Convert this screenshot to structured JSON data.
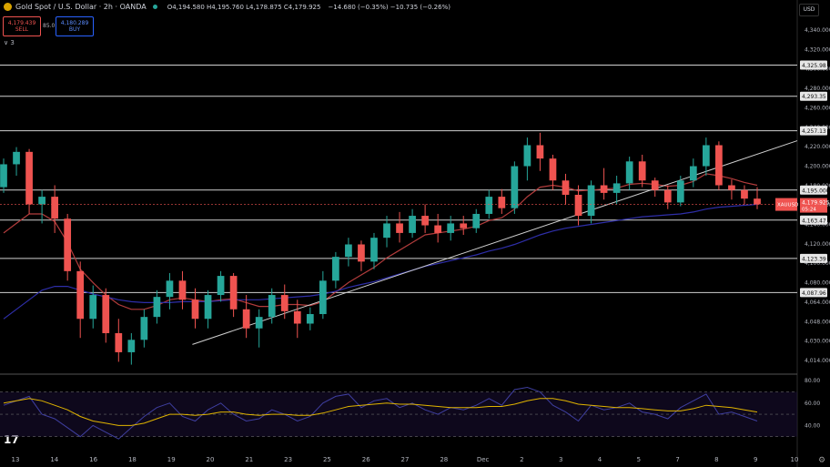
{
  "header": {
    "symbol": "Gold Spot / U.S. Dollar · 2h · OANDA",
    "ohlc": "O4,194.580 H4,195.760 L4,178.875 C4,179.925",
    "change": "−14.680 (−0.35%)  −10.735 (−0.26%)",
    "sell_price": "4,179.439",
    "sell_label": "SELL",
    "spread": "85.0",
    "buy_price": "4,180.289",
    "buy_label": "BUY",
    "collapse_label": "∨ 3",
    "currency": "USD",
    "logo": "17"
  },
  "colors": {
    "up": "#26a69a",
    "down": "#ef5350",
    "ema_short": "#b23c3c",
    "ema_long": "#2e2ea8",
    "rsi": "#3f3fa0",
    "rsi_ma": "#e0b400",
    "hline": "#d0d0d0",
    "price_tag": "#ef5350",
    "trend": "#d0d0d0"
  },
  "chart_data": {
    "type": "candlestick",
    "symbol": "XAUUSD",
    "x_ticks": [
      "13",
      "14",
      "16",
      "18",
      "19",
      "20",
      "21",
      "23",
      "25",
      "26",
      "27",
      "28",
      "Dec",
      "2",
      "3",
      "4",
      "5",
      "7",
      "8",
      "9",
      "10"
    ],
    "y_ticks": [
      "4,340.000",
      "4,320.000",
      "4,300.000",
      "4,280.000",
      "4,260.000",
      "4,240.000",
      "4,220.000",
      "4,200.000",
      "4,180.000",
      "4,160.000",
      "4,140.000",
      "4,120.000",
      "4,100.000",
      "4,080.000",
      "4,064.000",
      "4,048.000",
      "4,030.000",
      "4,014.000"
    ],
    "ylim": [
      4003,
      4356
    ],
    "horizontal_levels": [
      {
        "value": 4325.9,
        "label": "4,325.98"
      },
      {
        "value": 4293.3,
        "label": "4,293.35"
      },
      {
        "value": 4257.1,
        "label": "4,257.13"
      },
      {
        "value": 4195.0,
        "label": "4,195.000"
      },
      {
        "value": 4163.5,
        "label": "4,163.47"
      },
      {
        "value": 4123.3,
        "label": "4,123.39"
      },
      {
        "value": 4087.5,
        "label": "4,087.96"
      }
    ],
    "current_price": {
      "value": 4179.9,
      "label": "4,179.925",
      "ticker": "XAUUSD",
      "countdown": "05:24"
    },
    "trendline": {
      "start": {
        "x": "18",
        "y": 4012
      },
      "end": {
        "x": "9",
        "y": 4232
      }
    },
    "candles_ohlc": [
      [
        4198,
        4228,
        4192,
        4222
      ],
      [
        4222,
        4240,
        4210,
        4235
      ],
      [
        4235,
        4238,
        4170,
        4180
      ],
      [
        4180,
        4195,
        4160,
        4188
      ],
      [
        4188,
        4200,
        4150,
        4165
      ],
      [
        4165,
        4170,
        4100,
        4110
      ],
      [
        4110,
        4120,
        4040,
        4060
      ],
      [
        4060,
        4095,
        4050,
        4085
      ],
      [
        4085,
        4092,
        4035,
        4045
      ],
      [
        4045,
        4060,
        4015,
        4025
      ],
      [
        4025,
        4045,
        4012,
        4038
      ],
      [
        4038,
        4070,
        4030,
        4062
      ],
      [
        4062,
        4090,
        4055,
        4083
      ],
      [
        4083,
        4108,
        4070,
        4100
      ],
      [
        4100,
        4110,
        4070,
        4080
      ],
      [
        4080,
        4092,
        4050,
        4060
      ],
      [
        4060,
        4090,
        4050,
        4085
      ],
      [
        4085,
        4110,
        4078,
        4105
      ],
      [
        4105,
        4108,
        4062,
        4070
      ],
      [
        4070,
        4085,
        4040,
        4050
      ],
      [
        4050,
        4070,
        4030,
        4062
      ],
      [
        4062,
        4092,
        4055,
        4085
      ],
      [
        4085,
        4096,
        4060,
        4068
      ],
      [
        4068,
        4080,
        4040,
        4055
      ],
      [
        4055,
        4072,
        4048,
        4065
      ],
      [
        4065,
        4110,
        4060,
        4100
      ],
      [
        4100,
        4130,
        4092,
        4125
      ],
      [
        4125,
        4145,
        4115,
        4138
      ],
      [
        4138,
        4142,
        4110,
        4120
      ],
      [
        4120,
        4150,
        4112,
        4145
      ],
      [
        4145,
        4168,
        4135,
        4160
      ],
      [
        4160,
        4172,
        4140,
        4150
      ],
      [
        4150,
        4175,
        4145,
        4168
      ],
      [
        4168,
        4180,
        4150,
        4158
      ],
      [
        4158,
        4170,
        4140,
        4150
      ],
      [
        4150,
        4168,
        4142,
        4160
      ],
      [
        4160,
        4168,
        4148,
        4155
      ],
      [
        4155,
        4175,
        4150,
        4170
      ],
      [
        4170,
        4195,
        4165,
        4188
      ],
      [
        4188,
        4196,
        4170,
        4176
      ],
      [
        4176,
        4225,
        4170,
        4220
      ],
      [
        4220,
        4250,
        4205,
        4242
      ],
      [
        4242,
        4255,
        4215,
        4228
      ],
      [
        4228,
        4232,
        4195,
        4205
      ],
      [
        4205,
        4212,
        4180,
        4190
      ],
      [
        4190,
        4200,
        4158,
        4168
      ],
      [
        4168,
        4205,
        4160,
        4200
      ],
      [
        4200,
        4218,
        4185,
        4192
      ],
      [
        4192,
        4210,
        4180,
        4202
      ],
      [
        4202,
        4230,
        4195,
        4225
      ],
      [
        4225,
        4232,
        4198,
        4205
      ],
      [
        4205,
        4208,
        4188,
        4195
      ],
      [
        4195,
        4200,
        4175,
        4182
      ],
      [
        4182,
        4210,
        4178,
        4205
      ],
      [
        4205,
        4228,
        4198,
        4220
      ],
      [
        4220,
        4250,
        4210,
        4242
      ],
      [
        4242,
        4246,
        4195,
        4200
      ],
      [
        4200,
        4206,
        4185,
        4195
      ],
      [
        4195,
        4200,
        4180,
        4186
      ],
      [
        4186,
        4198,
        4175,
        4180
      ]
    ],
    "ema_short_values": [
      4150,
      4160,
      4170,
      4170,
      4162,
      4140,
      4112,
      4098,
      4085,
      4075,
      4070,
      4070,
      4074,
      4080,
      4082,
      4080,
      4078,
      4080,
      4081,
      4077,
      4073,
      4073,
      4075,
      4075,
      4074,
      4078,
      4088,
      4098,
      4106,
      4114,
      4124,
      4132,
      4140,
      4148,
      4150,
      4152,
      4154,
      4157,
      4163,
      4166,
      4175,
      4188,
      4198,
      4200,
      4198,
      4194,
      4195,
      4196,
      4197,
      4201,
      4202,
      4201,
      4199,
      4200,
      4204,
      4212,
      4210,
      4207,
      4203,
      4200
    ],
    "ema_long_values": [
      4060,
      4070,
      4080,
      4090,
      4094,
      4094,
      4090,
      4086,
      4083,
      4080,
      4078,
      4077,
      4077,
      4077,
      4078,
      4078,
      4078,
      4079,
      4080,
      4080,
      4080,
      4081,
      4082,
      4083,
      4084,
      4086,
      4089,
      4093,
      4096,
      4099,
      4103,
      4107,
      4111,
      4115,
      4118,
      4121,
      4124,
      4127,
      4131,
      4134,
      4138,
      4143,
      4148,
      4152,
      4155,
      4157,
      4159,
      4161,
      4163,
      4165,
      4167,
      4168,
      4169,
      4170,
      4172,
      4175,
      4177,
      4178,
      4179,
      4180
    ],
    "rsi": {
      "ylim": [
        20,
        85
      ],
      "y_ticks": [
        "80.00",
        "60.00",
        "40.00"
      ],
      "levels": [
        70,
        50,
        30
      ],
      "values": [
        58,
        62,
        66,
        50,
        46,
        38,
        30,
        40,
        34,
        28,
        38,
        48,
        56,
        60,
        48,
        44,
        54,
        60,
        50,
        44,
        46,
        54,
        50,
        44,
        48,
        60,
        66,
        68,
        56,
        62,
        64,
        56,
        60,
        54,
        50,
        56,
        54,
        58,
        64,
        58,
        72,
        74,
        70,
        58,
        52,
        44,
        58,
        54,
        56,
        60,
        52,
        50,
        46,
        56,
        62,
        68,
        50,
        52,
        48,
        44
      ],
      "ma_values": [
        60,
        62,
        64,
        62,
        58,
        54,
        48,
        44,
        42,
        40,
        40,
        42,
        46,
        50,
        50,
        49,
        50,
        52,
        52,
        50,
        49,
        50,
        50,
        49,
        49,
        51,
        54,
        57,
        58,
        59,
        60,
        59,
        59,
        58,
        57,
        56,
        56,
        56,
        57,
        57,
        59,
        62,
        64,
        64,
        62,
        59,
        58,
        57,
        56,
        56,
        55,
        54,
        53,
        53,
        55,
        58,
        57,
        56,
        54,
        52
      ]
    }
  }
}
